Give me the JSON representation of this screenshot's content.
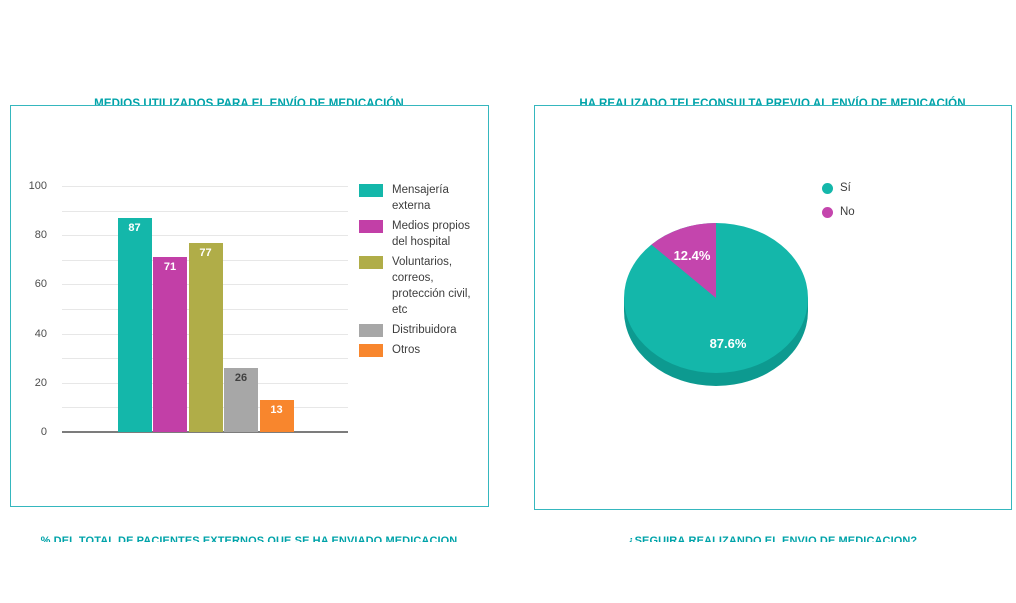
{
  "theme": {
    "background": "#ffffff",
    "title_color": "#00a3a9",
    "panel_border_color": "#35b7be",
    "axis_text_color": "#4d4d4d",
    "legend_text_color": "#3d3d3d",
    "gridline_color": "#e7e7e7",
    "baseline_color": "#7c7c7c",
    "pie_depth_color": "#0d9a90"
  },
  "footer_captions": {
    "left": "% DEL TOTAL DE PACIENTES EXTERNOS QUE SE HA ENVIADO MEDICACIÓN",
    "right": "¿SEGUIRÁ REALIZANDO EL ENVÍO DE MEDICACIÓN?"
  },
  "chart_data": [
    {
      "type": "bar",
      "title": "MEDIOS UTILIZADOS PARA EL ENVÍO DE MEDICACIÓN",
      "categories": [
        "Mensajería externa",
        "Medios propios del hospital",
        "Voluntarios, correos, protección civil, etc",
        "Distribuidora",
        "Otros"
      ],
      "values": [
        87,
        71,
        77,
        26,
        13
      ],
      "bar_colors": [
        "#14b7aa",
        "#c23fa7",
        "#b0ad48",
        "#a7a7a7",
        "#f8862d"
      ],
      "value_label_colors": [
        "#ffffff",
        "#ffffff",
        "#ffffff",
        "#404040",
        "#ffffff"
      ],
      "ylim": [
        0,
        100
      ],
      "yticks": [
        0,
        20,
        40,
        60,
        80,
        100
      ],
      "grid_step": 10,
      "grid": true,
      "legend_position": "right",
      "legend": [
        "Mensajería externa",
        "Medios propios del hospital",
        "Voluntarios, correos, protección civil, etc",
        "Distribuidora",
        "Otros"
      ]
    },
    {
      "type": "pie",
      "style": "3d",
      "title": "HA REALIZADO TELECONSULTA PREVIO AL ENVÍO DE MEDICACIÓN",
      "labels": [
        "Sí",
        "No"
      ],
      "values": [
        87.6,
        12.4
      ],
      "value_labels": [
        "87.6%",
        "12.4%"
      ],
      "slice_colors": [
        "#14b7aa",
        "#c445ad"
      ],
      "legend_position": "top-right"
    }
  ]
}
